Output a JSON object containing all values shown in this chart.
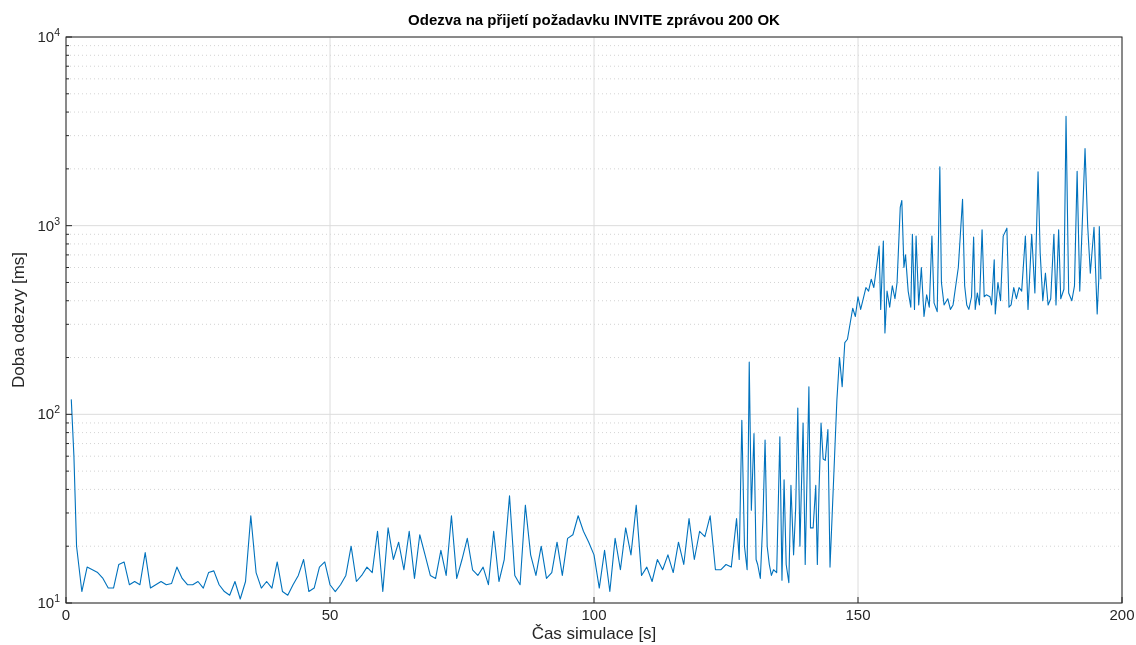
{
  "chart_data": {
    "type": "line",
    "title": "Odezva na přijetí požadavku INVITE zprávou 200 OK",
    "xlabel": "Čas simulace [s]",
    "ylabel": "Doba odezvy [ms]",
    "log": "y",
    "grid": true,
    "xlim": [
      0,
      200
    ],
    "xticks": [
      0,
      50,
      100,
      150,
      200
    ],
    "ylim": [
      10,
      10000
    ],
    "yticks": [
      {
        "value": 10,
        "label": "10$^{1}$"
      },
      {
        "value": 100,
        "label": "10$^{2}$"
      },
      {
        "value": 1000,
        "label": "10$^{3}$"
      },
      {
        "value": 10000,
        "label": "10$^{4}$"
      }
    ],
    "marker": "none",
    "line_style": "solid",
    "series": [
      {
        "color": "#0072bd",
        "x": [
          1,
          1.5,
          2,
          3,
          4,
          6,
          7,
          8,
          9,
          10,
          11,
          12,
          13,
          14,
          15,
          16,
          17,
          18,
          19,
          20,
          21,
          22,
          23,
          24,
          25,
          26,
          27,
          28,
          29,
          30,
          31,
          32,
          33,
          34,
          35,
          36,
          37,
          38,
          39,
          40,
          41,
          42,
          43,
          44,
          45,
          46,
          47,
          48,
          49,
          50,
          51,
          52,
          53,
          54,
          55,
          56,
          57,
          58,
          59,
          60,
          61,
          62,
          63,
          64,
          65,
          66,
          67,
          68,
          69,
          70,
          71,
          72,
          73,
          74,
          75,
          76,
          77,
          78,
          79,
          80,
          81,
          82,
          83,
          84,
          85,
          86,
          87,
          88,
          89,
          90,
          91,
          92,
          93,
          94,
          95,
          96,
          97,
          98,
          99,
          100,
          101,
          102,
          103,
          104,
          105,
          106,
          107,
          108,
          109,
          110,
          111,
          112,
          113,
          114,
          115,
          116,
          117,
          118,
          119,
          120,
          121,
          122,
          123,
          124,
          125,
          126,
          127,
          127.5,
          128,
          128.5,
          129,
          129.4,
          129.8,
          130.3,
          130.7,
          131,
          131.5,
          132,
          132.4,
          132.8,
          133.2,
          133.6,
          134,
          134.6,
          135.2,
          135.6,
          136,
          136.4,
          136.9,
          137.3,
          137.8,
          138.2,
          138.6,
          139,
          139.6,
          140,
          140.7,
          141,
          141.5,
          142,
          142.3,
          142.6,
          143,
          143.4,
          143.8,
          144.3,
          144.7,
          145.1,
          146,
          146.5,
          147,
          147.5,
          148,
          149,
          149.5,
          150,
          150.5,
          151,
          151.5,
          152,
          152.5,
          153,
          153.5,
          154,
          154.3,
          154.8,
          155.1,
          155.5,
          156,
          156.5,
          157,
          157.4,
          158,
          158.3,
          158.7,
          159,
          159.5,
          160,
          160.3,
          160.7,
          161,
          161.5,
          162,
          162.5,
          163,
          163.5,
          164,
          164.4,
          165,
          165.3,
          165.5,
          165.8,
          166.3,
          167,
          167.5,
          168,
          169,
          169.8,
          170.2,
          170.6,
          171,
          171.5,
          171.9,
          172.2,
          172.6,
          173,
          173.5,
          173.9,
          174.3,
          175,
          175.3,
          175.8,
          176,
          176.5,
          177,
          177.5,
          178.2,
          178.6,
          179,
          179.5,
          180,
          180.5,
          181,
          181.7,
          182.2,
          182.9,
          183.5,
          184.1,
          184.5,
          185,
          185.5,
          186,
          186.5,
          187.1,
          187.5,
          188,
          188.4,
          189,
          189.4,
          189.9,
          190.5,
          191,
          191.5,
          192,
          193,
          193.5,
          194,
          194.7,
          195.3,
          195.6,
          195.7,
          196
        ],
        "values": [
          120,
          60,
          20,
          11.5,
          15.5,
          14.5,
          13.5,
          12,
          12,
          16,
          16.5,
          12.5,
          13,
          12.5,
          18.5,
          12,
          12.5,
          13,
          12.5,
          12.7,
          15.5,
          13.5,
          12.5,
          12.5,
          13,
          12,
          14.5,
          14.8,
          12.5,
          11.5,
          11,
          13,
          10.5,
          13,
          29,
          14.5,
          12,
          13,
          12,
          16.5,
          11.5,
          11,
          12.5,
          14,
          17,
          11.5,
          12,
          15.5,
          16.5,
          12.5,
          11.5,
          12.5,
          14,
          20,
          13,
          14,
          15.5,
          14.5,
          24,
          11.5,
          25,
          17,
          21,
          15,
          24,
          13.5,
          23,
          18,
          14,
          13.5,
          19,
          14,
          29,
          13.5,
          17,
          22,
          15,
          14,
          15.5,
          12.5,
          24,
          13,
          17,
          37,
          14,
          12.5,
          33,
          18,
          14,
          20,
          13.5,
          14.5,
          21,
          14,
          22,
          23,
          29,
          24,
          21,
          18,
          12,
          19,
          11.5,
          22,
          15,
          25,
          18,
          33,
          14,
          15.5,
          13,
          17,
          15,
          18,
          14.5,
          21,
          16,
          28,
          17,
          24,
          22.5,
          29,
          15,
          15,
          16,
          15.5,
          28,
          17,
          93,
          20,
          15,
          189,
          31,
          79,
          17,
          16,
          13.5,
          28,
          73,
          20,
          16,
          14,
          15,
          14.5,
          76,
          13.2,
          45,
          16,
          12.8,
          42,
          18,
          32,
          108,
          20,
          90,
          16,
          140,
          25,
          25,
          42,
          16,
          38,
          90,
          58,
          57,
          83,
          15.5,
          29,
          119,
          200,
          140,
          240,
          250,
          365,
          330,
          420,
          360,
          410,
          470,
          450,
          520,
          470,
          600,
          780,
          360,
          830,
          270,
          450,
          370,
          480,
          410,
          500,
          1250,
          1360,
          600,
          700,
          450,
          370,
          900,
          360,
          880,
          380,
          600,
          330,
          430,
          370,
          880,
          390,
          350,
          1050,
          2050,
          500,
          380,
          410,
          360,
          380,
          600,
          1380,
          480,
          380,
          360,
          420,
          870,
          360,
          440,
          380,
          950,
          420,
          430,
          420,
          380,
          660,
          340,
          500,
          400,
          880,
          970,
          370,
          380,
          470,
          410,
          470,
          450,
          880,
          360,
          900,
          440,
          1930,
          720,
          400,
          560,
          380,
          410,
          900,
          380,
          950,
          410,
          460,
          3800,
          440,
          400,
          480,
          1940,
          450,
          2560,
          1000,
          560,
          980,
          340,
          520,
          990,
          520
        ]
      }
    ]
  }
}
